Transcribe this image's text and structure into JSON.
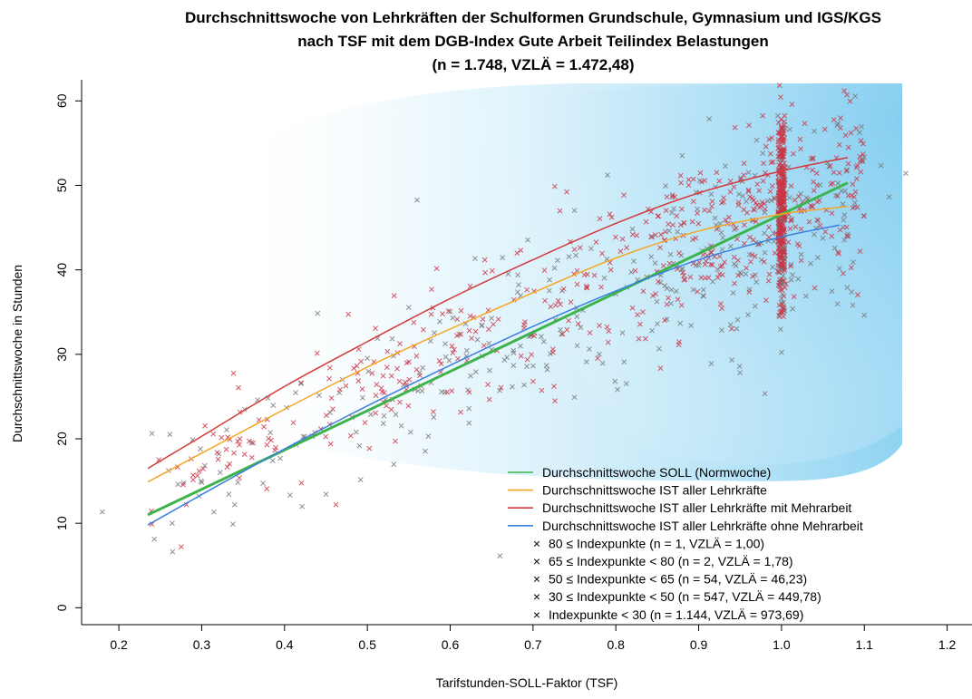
{
  "chart_data": {
    "type": "scatter",
    "title": [
      "Durchschnittswoche von Lehrkräften der Schulformen Grundschule, Gymnasium und IGS/KGS",
      "nach TSF mit dem DGB-Index Gute Arbeit Teilindex Belastungen",
      "(n = 1.748, VZLÄ = 1.472,48)"
    ],
    "xlabel": "Tarifstunden-SOLL-Faktor (TSF)",
    "ylabel": "Durchschnittswoche in Stunden",
    "xlim": [
      0.155,
      1.23
    ],
    "ylim": [
      -2,
      62.5
    ],
    "xticks": [
      "0.2",
      "0.3",
      "0.4",
      "0.5",
      "0.6",
      "0.7",
      "0.8",
      "0.9",
      "1.0",
      "1.1",
      "1.2"
    ],
    "yticks": [
      "0",
      "10",
      "20",
      "30",
      "40",
      "50",
      "60"
    ],
    "grid": false,
    "legend_position": "bottom-right",
    "lines": [
      {
        "name": "Durchschnittswoche SOLL (Normwoche)",
        "color": "#3cb44b",
        "width": 3,
        "x": [
          0.235,
          1.08
        ],
        "y": [
          11.0,
          50.3
        ]
      },
      {
        "name": "Durchschnittswoche IST aller Lehrkräfte",
        "color": "#f5a623",
        "width": 1.5,
        "x": [
          0.235,
          0.3,
          0.4,
          0.5,
          0.6,
          0.7,
          0.8,
          0.9,
          1.0,
          1.05,
          1.08
        ],
        "y": [
          14.9,
          18.3,
          23.5,
          28.5,
          33.0,
          37.3,
          41.4,
          44.6,
          46.6,
          47.2,
          47.5
        ]
      },
      {
        "name": "Durchschnittswoche IST aller Lehrkräfte mit Mehrarbeit",
        "color": "#d43a3a",
        "width": 1.5,
        "x": [
          0.235,
          0.3,
          0.4,
          0.5,
          0.6,
          0.7,
          0.8,
          0.9,
          1.0,
          1.08
        ],
        "y": [
          16.5,
          20.3,
          26.2,
          31.5,
          36.6,
          41.2,
          45.5,
          49.1,
          51.7,
          53.3
        ]
      },
      {
        "name": "Durchschnittswoche IST aller Lehrkräfte ohne Mehrarbeit",
        "color": "#3a7ee0",
        "width": 1.5,
        "x": [
          0.235,
          0.3,
          0.4,
          0.5,
          0.6,
          0.7,
          0.8,
          0.9,
          1.0,
          1.07
        ],
        "y": [
          9.8,
          13.4,
          18.8,
          23.9,
          28.7,
          33.3,
          37.5,
          41.2,
          43.9,
          45.3
        ]
      }
    ],
    "point_groups": [
      {
        "name": "80 ≤ Indexpunkte (n = 1, VZLÄ = 1,00)",
        "color": "#777777",
        "marker": "x",
        "x": [
          0.66
        ],
        "y": [
          6.1
        ]
      },
      {
        "name": "65 ≤ Indexpunkte < 80 (n = 2, VZLÄ = 1,78)",
        "color": "#777777",
        "marker": "x",
        "x": [
          0.95,
          1.0
        ],
        "y": [
          27.8,
          38.5
        ]
      },
      {
        "name": "50 ≤ Indexpunkte < 65 (n = 54, VZLÄ = 46,23)",
        "color": "#777777",
        "marker": "x",
        "x": [
          0.18,
          0.24,
          0.26,
          0.3,
          0.33,
          0.36,
          0.38,
          0.42,
          0.45,
          0.47,
          0.5,
          0.53,
          0.55,
          0.57,
          0.6,
          0.62,
          0.65,
          0.67,
          0.7,
          0.72,
          0.75,
          0.77,
          0.8,
          0.82,
          0.85,
          0.87,
          0.9,
          0.92,
          0.94,
          0.96,
          0.98,
          1.0,
          1.0,
          1.01,
          1.02,
          1.03,
          1.05,
          1.07,
          1.1,
          1.12,
          0.56,
          0.65,
          0.75,
          0.88,
          0.97,
          1.08,
          0.44,
          0.52,
          0.63,
          0.79,
          0.86,
          1.13,
          1.15,
          0.98
        ],
        "y": [
          11.3,
          20.6,
          16.2,
          14.8,
          21.0,
          19.5,
          24.8,
          26.5,
          13.4,
          27.0,
          29.5,
          31.8,
          35.5,
          18.5,
          35.0,
          30.4,
          34.2,
          39.5,
          28.6,
          38.8,
          24.9,
          42.5,
          37.1,
          44.8,
          33.6,
          47.2,
          40.5,
          49.8,
          29.3,
          51.5,
          42.0,
          30.2,
          45.8,
          56.6,
          38.9,
          48.5,
          43.7,
          40.1,
          34.6,
          52.3,
          48.2,
          30.5,
          47.0,
          53.5,
          55.3,
          44.2,
          34.8,
          22.7,
          41.3,
          51.2,
          49.9,
          48.6,
          51.4,
          25.3
        ]
      },
      {
        "name": "30 ≤ Indexpunkte < 50 (n = 547, VZLÄ = 449,78)",
        "color": "#777777",
        "marker": "x",
        "x": [],
        "y": []
      },
      {
        "name": "Indexpunkte < 30 (n = 1.144, VZLÄ = 973,69)",
        "color": "#cc3344",
        "marker": "x",
        "x": [],
        "y": []
      }
    ]
  },
  "colors": {
    "gradient_light": "#ffffff",
    "gradient_dark": "#8fd3f2",
    "axis": "#000000"
  }
}
